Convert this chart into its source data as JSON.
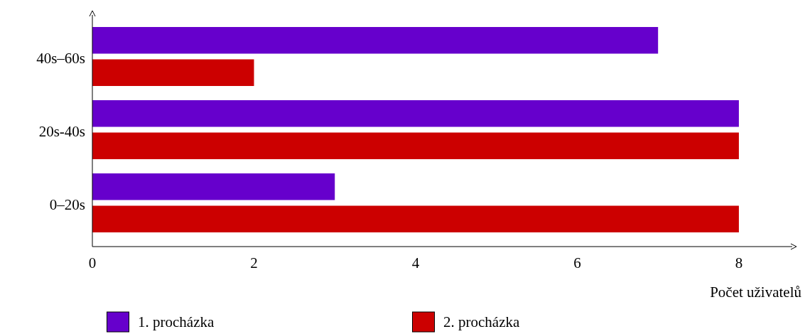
{
  "chart_data": {
    "type": "bar",
    "orientation": "horizontal",
    "categories": [
      "40s–60s",
      "20s-40s",
      "0–20s"
    ],
    "series": [
      {
        "name": "1. procházka",
        "color": "#6600cc",
        "values": [
          7,
          8,
          3
        ]
      },
      {
        "name": "2. procházka",
        "color": "#cc0000",
        "values": [
          2,
          8,
          8
        ]
      }
    ],
    "xlabel": "Počet uživatelů",
    "xlim": [
      0,
      8.66
    ],
    "xticks": [
      0,
      2,
      4,
      6,
      8
    ],
    "legend": "bottom"
  }
}
